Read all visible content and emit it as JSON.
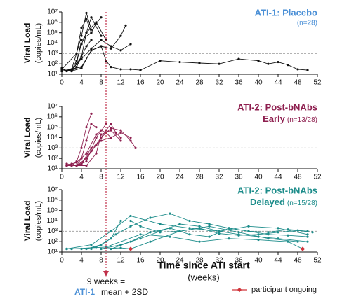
{
  "chart_data": [
    {
      "type": "line",
      "title": "ATI-1: Placebo",
      "note": "(n=28)",
      "title_color": "#4a8fd6",
      "ylabel": "Viral Load",
      "yunit": "(copies/mL)",
      "log_y": true,
      "xlim": [
        0,
        52
      ],
      "xticks": [
        0,
        4,
        8,
        12,
        16,
        20,
        24,
        28,
        32,
        36,
        40,
        44,
        48,
        52
      ],
      "ylim": [
        10,
        10000000
      ],
      "yticks": [
        {
          "value": 10,
          "label": "10¹"
        },
        {
          "value": 100,
          "label": "10²"
        },
        {
          "value": 1000,
          "label": "10³"
        },
        {
          "value": 10000,
          "label": "10⁴"
        },
        {
          "value": 100000,
          "label": "10⁵"
        },
        {
          "value": 1000000,
          "label": "10⁶"
        },
        {
          "value": 10000000,
          "label": "10⁷"
        }
      ],
      "reference_line": 1000,
      "series": [
        {
          "color": "#111111",
          "x": [
            0,
            2,
            4,
            5,
            6,
            8
          ],
          "values": [
            20,
            20,
            500,
            100000,
            3000000,
            50000
          ]
        },
        {
          "color": "#111111",
          "x": [
            0,
            1,
            2,
            3,
            4,
            5,
            6
          ],
          "values": [
            40,
            20,
            30,
            1000,
            50000,
            8000000,
            200000
          ]
        },
        {
          "color": "#111111",
          "x": [
            0,
            2,
            3,
            4,
            5,
            7,
            9
          ],
          "values": [
            20,
            25,
            200,
            8000,
            100000,
            1000000,
            20000
          ]
        },
        {
          "color": "#111111",
          "x": [
            0,
            2,
            4,
            6,
            8,
            10,
            12,
            13
          ],
          "values": [
            30,
            20,
            40,
            2000,
            5000,
            3000,
            50000,
            500000
          ]
        },
        {
          "color": "#111111",
          "x": [
            0,
            4,
            6,
            8,
            9,
            10,
            12,
            14,
            16,
            20,
            24,
            28,
            32,
            36,
            40,
            42,
            44,
            46,
            48,
            50
          ],
          "values": [
            20,
            50,
            2000,
            5000,
            200,
            50,
            30,
            30,
            25,
            200,
            150,
            120,
            100,
            300,
            200,
            100,
            150,
            80,
            30,
            25
          ]
        },
        {
          "color": "#111111",
          "x": [
            0,
            2,
            3,
            4,
            6,
            7,
            8
          ],
          "values": [
            20,
            20,
            100,
            20000,
            100000,
            800000,
            3000000
          ]
        },
        {
          "color": "#111111",
          "x": [
            0,
            2,
            4,
            6,
            8,
            10,
            12,
            14
          ],
          "values": [
            20,
            30,
            300,
            3000,
            20000,
            5000,
            2000,
            8000
          ]
        },
        {
          "color": "#111111",
          "x": [
            0,
            3,
            4,
            5,
            6
          ],
          "values": [
            30,
            1000,
            300000,
            2000000,
            100000
          ]
        },
        {
          "color": "#111111",
          "x": [
            0,
            1,
            2,
            3,
            5,
            6
          ],
          "values": [
            20,
            20,
            20,
            50,
            5000,
            20000
          ]
        }
      ]
    },
    {
      "type": "line",
      "title": "ATI-2: Post-bNAbs",
      "subtitle": "Early",
      "note": "(n=13/28)",
      "title_color": "#8e1f4f",
      "ylabel": "Viral Load",
      "yunit": "(copies/mL)",
      "log_y": true,
      "xlim": [
        0,
        52
      ],
      "xticks": [
        0,
        4,
        8,
        12,
        16,
        20,
        24,
        28,
        32,
        36,
        40,
        44,
        48,
        52
      ],
      "ylim": [
        10,
        10000000
      ],
      "yticks": [
        {
          "value": 10,
          "label": "10¹"
        },
        {
          "value": 100,
          "label": "10²"
        },
        {
          "value": 1000,
          "label": "10³"
        },
        {
          "value": 10000,
          "label": "10⁴"
        },
        {
          "value": 100000,
          "label": "10⁵"
        },
        {
          "value": 1000000,
          "label": "10⁶"
        },
        {
          "value": 10000000,
          "label": "10⁷"
        }
      ],
      "reference_line": 1000,
      "series": [
        {
          "color": "#8e1f4f",
          "x": [
            1,
            2,
            3,
            4,
            5,
            6
          ],
          "values": [
            20,
            20,
            50,
            1000,
            100000,
            2000000
          ]
        },
        {
          "color": "#8e1f4f",
          "x": [
            1,
            3,
            4,
            5,
            6,
            7
          ],
          "values": [
            30,
            20,
            100,
            5000,
            200000,
            100000
          ]
        },
        {
          "color": "#8e1f4f",
          "x": [
            1,
            2,
            3,
            5,
            7,
            8,
            9,
            10
          ],
          "values": [
            20,
            30,
            40,
            300,
            20000,
            50000,
            30000,
            10000
          ]
        },
        {
          "color": "#8e1f4f",
          "x": [
            1,
            3,
            5,
            7,
            9,
            10,
            11,
            12
          ],
          "values": [
            20,
            20,
            100,
            2000,
            50000,
            200000,
            30000,
            10000
          ]
        },
        {
          "color": "#8e1f4f",
          "x": [
            1,
            2,
            4,
            6,
            8,
            10,
            12,
            14
          ],
          "values": [
            20,
            20,
            30,
            1000,
            5000,
            10000,
            30000,
            10000
          ]
        },
        {
          "color": "#8e1f4f",
          "x": [
            1,
            3,
            5,
            7,
            8,
            10,
            12
          ],
          "values": [
            20,
            20,
            20,
            300,
            20000,
            50000,
            5000
          ]
        },
        {
          "color": "#8e1f4f",
          "x": [
            2,
            4,
            6,
            8,
            10,
            12,
            14,
            15
          ],
          "values": [
            20,
            30,
            500,
            10000,
            80000,
            50000,
            5000,
            1000
          ]
        },
        {
          "color": "#8e1f4f",
          "x": [
            1,
            3,
            5,
            7,
            9
          ],
          "values": [
            20,
            20,
            50,
            10000,
            200000
          ]
        }
      ]
    },
    {
      "type": "line",
      "title": "ATI-2: Post-bNAbs",
      "subtitle": "Delayed",
      "note": "(n=15/28)",
      "title_color": "#1c8c8a",
      "ylabel": "Viral Load",
      "yunit": "(copies/mL)",
      "log_y": true,
      "xlim": [
        0,
        52
      ],
      "xticks": [
        0,
        4,
        8,
        12,
        16,
        20,
        24,
        28,
        32,
        36,
        40,
        44,
        48,
        52
      ],
      "ylim": [
        10,
        10000000
      ],
      "yticks": [
        {
          "value": 10,
          "label": "10¹"
        },
        {
          "value": 100,
          "label": "10²"
        },
        {
          "value": 1000,
          "label": "10³"
        },
        {
          "value": 10000,
          "label": "10⁴"
        },
        {
          "value": 100000,
          "label": "10⁵"
        },
        {
          "value": 1000000,
          "label": "10⁶"
        },
        {
          "value": 10000000,
          "label": "10⁷"
        }
      ],
      "reference_line": 1000,
      "series": [
        {
          "color": "#1c8c8a",
          "x": [
            1,
            4,
            7,
            9,
            11,
            14,
            18,
            22,
            26,
            30,
            34,
            38,
            42,
            46,
            50
          ],
          "values": [
            20,
            20,
            30,
            100,
            500,
            3000,
            20000,
            50000,
            10000,
            5000,
            2000,
            1000,
            800,
            1500,
            1000
          ]
        },
        {
          "color": "#1c8c8a",
          "x": [
            1,
            5,
            8,
            10,
            12,
            14,
            16,
            20,
            24,
            28,
            32,
            36,
            40,
            44,
            48,
            51
          ],
          "values": [
            20,
            20,
            50,
            200,
            10000,
            10000,
            3000,
            800,
            1000,
            2000,
            600,
            400,
            500,
            800,
            1200,
            800
          ]
        },
        {
          "color": "#1c8c8a",
          "x": [
            1,
            8,
            12,
            16,
            20,
            24,
            28,
            32,
            36,
            40,
            44,
            50
          ],
          "values": [
            20,
            20,
            50,
            200,
            1000,
            5000,
            3000,
            1000,
            500,
            300,
            200,
            100
          ]
        },
        {
          "color": "#1c8c8a",
          "x": [
            2,
            10,
            14,
            18,
            22,
            26,
            30,
            34,
            38,
            42,
            46,
            50
          ],
          "values": [
            20,
            20,
            100,
            800,
            2000,
            500,
            300,
            2000,
            1000,
            500,
            400,
            300
          ]
        },
        {
          "color": "#1c8c8a",
          "x": [
            1,
            6,
            10,
            14,
            18,
            24,
            30,
            36,
            42,
            48
          ],
          "values": [
            20,
            20,
            20,
            20,
            100,
            1000,
            3000,
            800,
            200,
            100
          ]
        },
        {
          "color": "#1c8c8a",
          "x": [
            1,
            8,
            12,
            14
          ],
          "values": [
            20,
            20,
            25,
            20
          ],
          "ongoing": true
        },
        {
          "color": "#1c8c8a",
          "x": [
            2,
            9,
            16,
            22,
            28,
            34,
            40,
            46,
            49
          ],
          "values": [
            20,
            30,
            500,
            300,
            100,
            200,
            150,
            100,
            20
          ],
          "ongoing": true
        },
        {
          "color": "#1c8c8a",
          "x": [
            1,
            6,
            10,
            14,
            20,
            26,
            32,
            38,
            44,
            50
          ],
          "values": [
            20,
            50,
            1000,
            30000,
            5000,
            2000,
            1000,
            3000,
            2000,
            500
          ]
        }
      ]
    }
  ],
  "figure": {
    "xlabel": "Time since ATI start",
    "xunit": "(weeks)",
    "vline_x": 9,
    "vline_color": "#c0304a",
    "annotation": [
      "9 weeks =",
      "ATI-1",
      "mean + 2SD"
    ],
    "legend_ongoing": "participant ongoing",
    "ongoing_color": "#d0343a"
  }
}
